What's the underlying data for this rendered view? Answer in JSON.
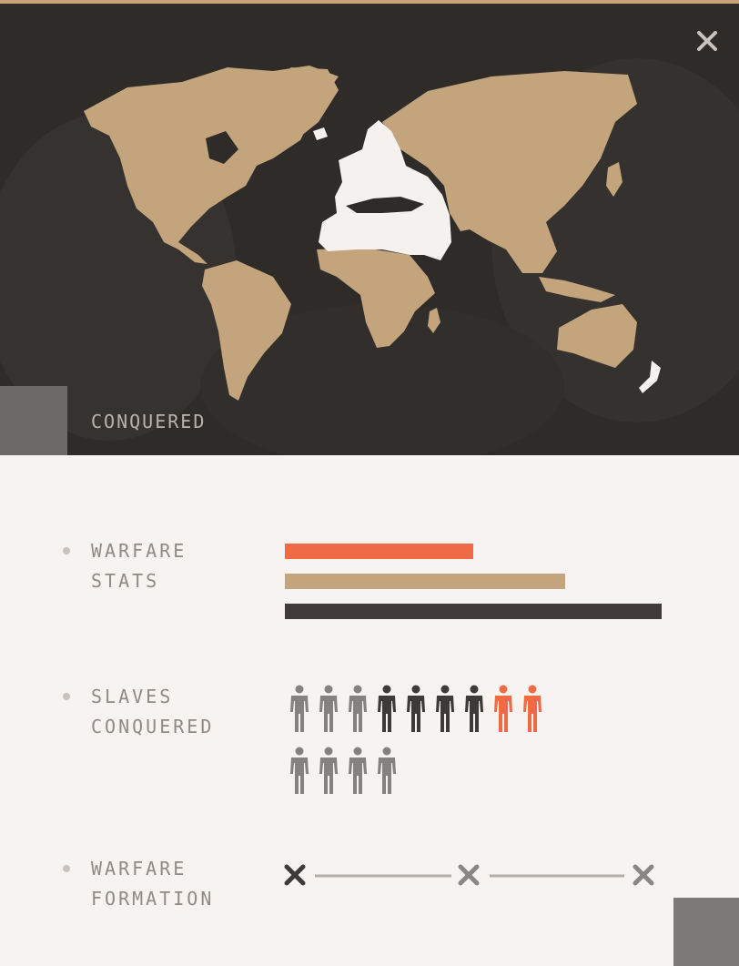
{
  "map": {
    "label": "CONQUERED",
    "colors": {
      "background": "#2e2b28",
      "land": "#c4a47c",
      "conquered": "#f4f1ee"
    },
    "close_icon": "close-icon"
  },
  "stats": {
    "warfare_stats": {
      "label_line1": "WARFARE",
      "label_line2": "STATS",
      "bars": [
        {
          "name": "bar-orange",
          "value": 0.5,
          "color": "#ef6b45"
        },
        {
          "name": "bar-tan",
          "value": 0.745,
          "color": "#c4a47c"
        },
        {
          "name": "bar-dark",
          "value": 1.0,
          "color": "#403b38"
        }
      ]
    },
    "slaves_conquered": {
      "label_line1": "SLAVES",
      "label_line2": "CONQUERED",
      "row1": [
        "grey",
        "grey",
        "grey",
        "dark",
        "dark",
        "dark",
        "dark",
        "orange",
        "orange"
      ],
      "row2": [
        "grey",
        "grey",
        "grey",
        "grey"
      ],
      "colors": {
        "grey": "#858180",
        "dark": "#3e3a37",
        "orange": "#ef6b45"
      }
    },
    "warfare_formation": {
      "label_line1": "WARFARE",
      "label_line2": "FORMATION",
      "markers": [
        "x-dark",
        "x-grey",
        "x-grey"
      ]
    }
  }
}
